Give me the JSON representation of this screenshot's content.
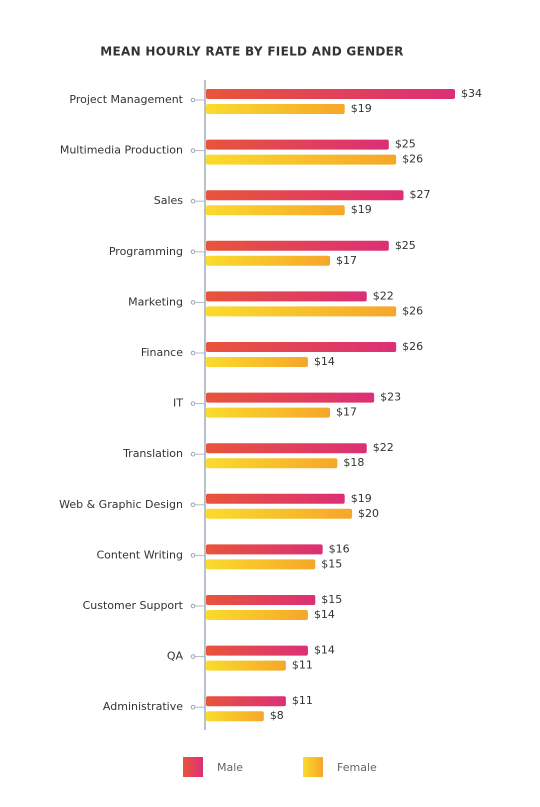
{
  "chart_data": {
    "type": "bar",
    "orientation": "horizontal",
    "title": "MEAN HOURLY RATE BY FIELD AND GENDER",
    "categories": [
      "Project Management",
      "Multimedia Production",
      "Sales",
      "Programming",
      "Marketing",
      "Finance",
      "IT",
      "Translation",
      "Web & Graphic Design",
      "Content Writing",
      "Customer Support",
      "QA",
      "Administrative"
    ],
    "series": [
      {
        "name": "Male",
        "colors": [
          "#e8553a",
          "#dc2f77"
        ],
        "values": [
          34,
          25,
          27,
          25,
          22,
          26,
          23,
          22,
          19,
          16,
          15,
          14,
          11
        ],
        "value_labels": [
          "$34",
          "$25",
          "$27",
          "$25",
          "$22",
          "$26",
          "$23",
          "$22",
          "$19",
          "$16",
          "$15",
          "$14",
          "$11"
        ]
      },
      {
        "name": "Female",
        "colors": [
          "#fadb2c",
          "#f6a62a"
        ],
        "values": [
          19,
          26,
          19,
          17,
          26,
          14,
          17,
          18,
          20,
          15,
          14,
          11,
          8
        ],
        "value_labels": [
          "$19",
          "$26",
          "$19",
          "$17",
          "$26",
          "$14",
          "$17",
          "$18",
          "$20",
          "$15",
          "$14",
          "$11",
          "$8"
        ]
      }
    ]
  }
}
